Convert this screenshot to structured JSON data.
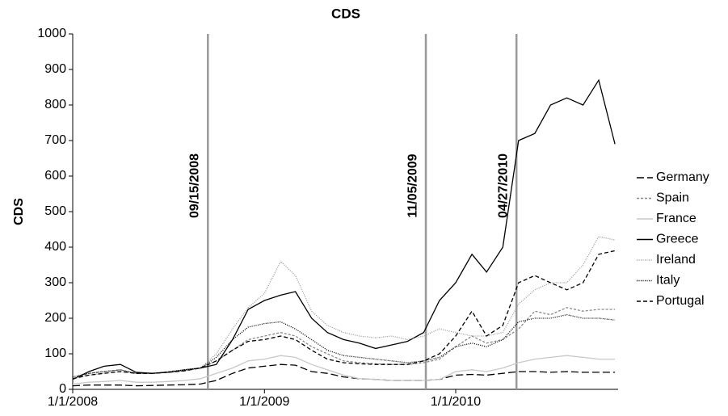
{
  "chart_data": {
    "type": "line",
    "title": "CDS",
    "ylabel": "CDS",
    "x": [
      "2008-01-01",
      "2008-02-01",
      "2008-03-01",
      "2008-04-01",
      "2008-05-01",
      "2008-06-01",
      "2008-07-01",
      "2008-08-01",
      "2008-09-01",
      "2008-10-01",
      "2008-11-01",
      "2008-12-01",
      "2009-01-01",
      "2009-02-01",
      "2009-03-01",
      "2009-04-01",
      "2009-05-01",
      "2009-06-01",
      "2009-07-01",
      "2009-08-01",
      "2009-09-01",
      "2009-10-01",
      "2009-11-01",
      "2009-12-01",
      "2010-01-01",
      "2010-02-01",
      "2010-03-01",
      "2010-04-01",
      "2010-05-01",
      "2010-06-01",
      "2010-07-01",
      "2010-08-01",
      "2010-09-01",
      "2010-10-01",
      "2010-11-01"
    ],
    "series": [
      {
        "name": "Germany",
        "color": "#000000",
        "dash": "9,4",
        "values": [
          10,
          12,
          12,
          12,
          10,
          11,
          12,
          13,
          15,
          25,
          45,
          60,
          65,
          70,
          68,
          50,
          45,
          35,
          30,
          28,
          25,
          25,
          25,
          28,
          40,
          42,
          40,
          45,
          50,
          50,
          48,
          50,
          48,
          48,
          48
        ]
      },
      {
        "name": "Spain",
        "color": "#888888",
        "dash": "3,2",
        "values": [
          30,
          45,
          50,
          55,
          45,
          45,
          50,
          55,
          60,
          80,
          110,
          140,
          150,
          160,
          150,
          120,
          100,
          80,
          75,
          72,
          70,
          70,
          75,
          85,
          120,
          150,
          130,
          140,
          170,
          220,
          210,
          230,
          220,
          225,
          225
        ]
      },
      {
        "name": "France",
        "color": "#c8c8c8",
        "dash": "",
        "values": [
          15,
          20,
          22,
          25,
          20,
          20,
          22,
          25,
          30,
          45,
          60,
          80,
          85,
          95,
          90,
          70,
          55,
          40,
          30,
          28,
          25,
          25,
          25,
          28,
          50,
          55,
          50,
          60,
          75,
          85,
          90,
          95,
          90,
          85,
          85
        ]
      },
      {
        "name": "Greece",
        "color": "#000000",
        "dash": "",
        "values": [
          28,
          50,
          65,
          70,
          48,
          45,
          48,
          55,
          60,
          70,
          140,
          225,
          250,
          265,
          275,
          200,
          160,
          140,
          130,
          115,
          125,
          135,
          160,
          250,
          300,
          380,
          330,
          400,
          700,
          720,
          800,
          820,
          800,
          870,
          690
        ]
      },
      {
        "name": "Ireland",
        "color": "#999999",
        "dash": "1,1.5",
        "values": [
          30,
          40,
          45,
          50,
          45,
          45,
          50,
          55,
          60,
          100,
          170,
          230,
          270,
          360,
          320,
          220,
          180,
          160,
          150,
          145,
          150,
          140,
          150,
          170,
          160,
          150,
          150,
          160,
          240,
          280,
          300,
          300,
          350,
          430,
          420
        ]
      },
      {
        "name": "Italy",
        "color": "#000000",
        "dash": "1,1.5",
        "values": [
          35,
          45,
          50,
          55,
          45,
          45,
          48,
          52,
          60,
          90,
          140,
          175,
          185,
          190,
          170,
          140,
          110,
          95,
          90,
          85,
          80,
          75,
          80,
          90,
          120,
          130,
          120,
          140,
          190,
          200,
          200,
          210,
          200,
          200,
          195
        ]
      },
      {
        "name": "Portugal",
        "color": "#000000",
        "dash": "5,3",
        "values": [
          30,
          40,
          45,
          50,
          45,
          45,
          48,
          52,
          60,
          80,
          110,
          135,
          140,
          150,
          140,
          110,
          85,
          75,
          72,
          70,
          70,
          70,
          80,
          100,
          150,
          220,
          150,
          180,
          300,
          320,
          300,
          280,
          300,
          380,
          390
        ]
      }
    ],
    "events": [
      {
        "date": "2008-09-15",
        "label": "09/15/2008"
      },
      {
        "date": "2009-11-05",
        "label": "11/05/2009"
      },
      {
        "date": "2010-04-27",
        "label": "04/27/2010"
      }
    ],
    "xlim": [
      "2008-01-01",
      "2010-11-07"
    ],
    "xticks": [
      {
        "value": "2008-01-01",
        "label": "1/1/2008"
      },
      {
        "value": "2009-01-01",
        "label": "1/1/2009"
      },
      {
        "value": "2010-01-01",
        "label": "1/1/2010"
      }
    ],
    "ylim": [
      0,
      1000
    ],
    "yticks": [
      0,
      100,
      200,
      300,
      400,
      500,
      600,
      700,
      800,
      900,
      1000
    ],
    "grid": false,
    "legend": "right"
  }
}
